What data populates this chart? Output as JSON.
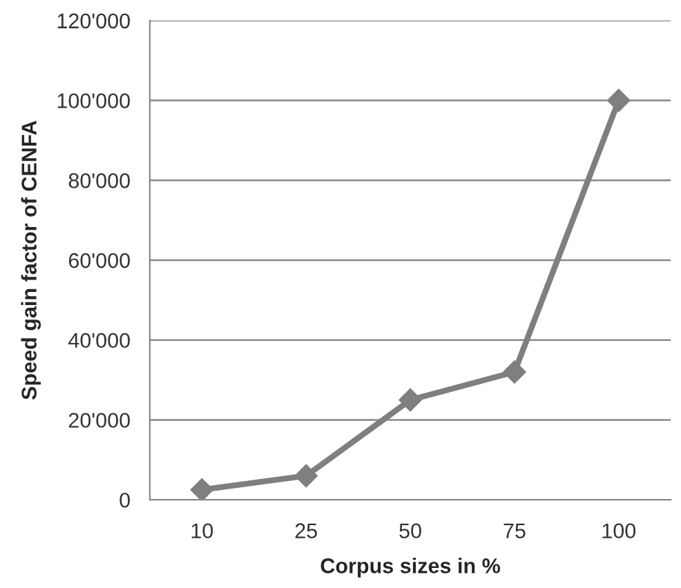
{
  "chart_data": {
    "type": "line",
    "xlabel": "Corpus sizes in %",
    "ylabel": "Speed gain factor of CENFA",
    "categories": [
      "10",
      "25",
      "50",
      "75",
      "100"
    ],
    "series": [
      {
        "color": "#7f7f7f",
        "values": [
          2500,
          6000,
          25000,
          32000,
          100000
        ]
      }
    ],
    "ylim": [
      0,
      120000
    ],
    "yticks": [
      0,
      {
        "value": 20000,
        "label": "20'000"
      },
      {
        "value": 40000,
        "label": "40'000"
      },
      {
        "value": 60000,
        "label": "60'000"
      },
      {
        "value": 80000,
        "label": "80'000"
      },
      {
        "value": 100000,
        "label": "100'000"
      },
      {
        "value": 120000,
        "label": "120'000"
      }
    ],
    "grid": "y",
    "marker": "diamond",
    "line_style": "solid",
    "legend": false
  }
}
